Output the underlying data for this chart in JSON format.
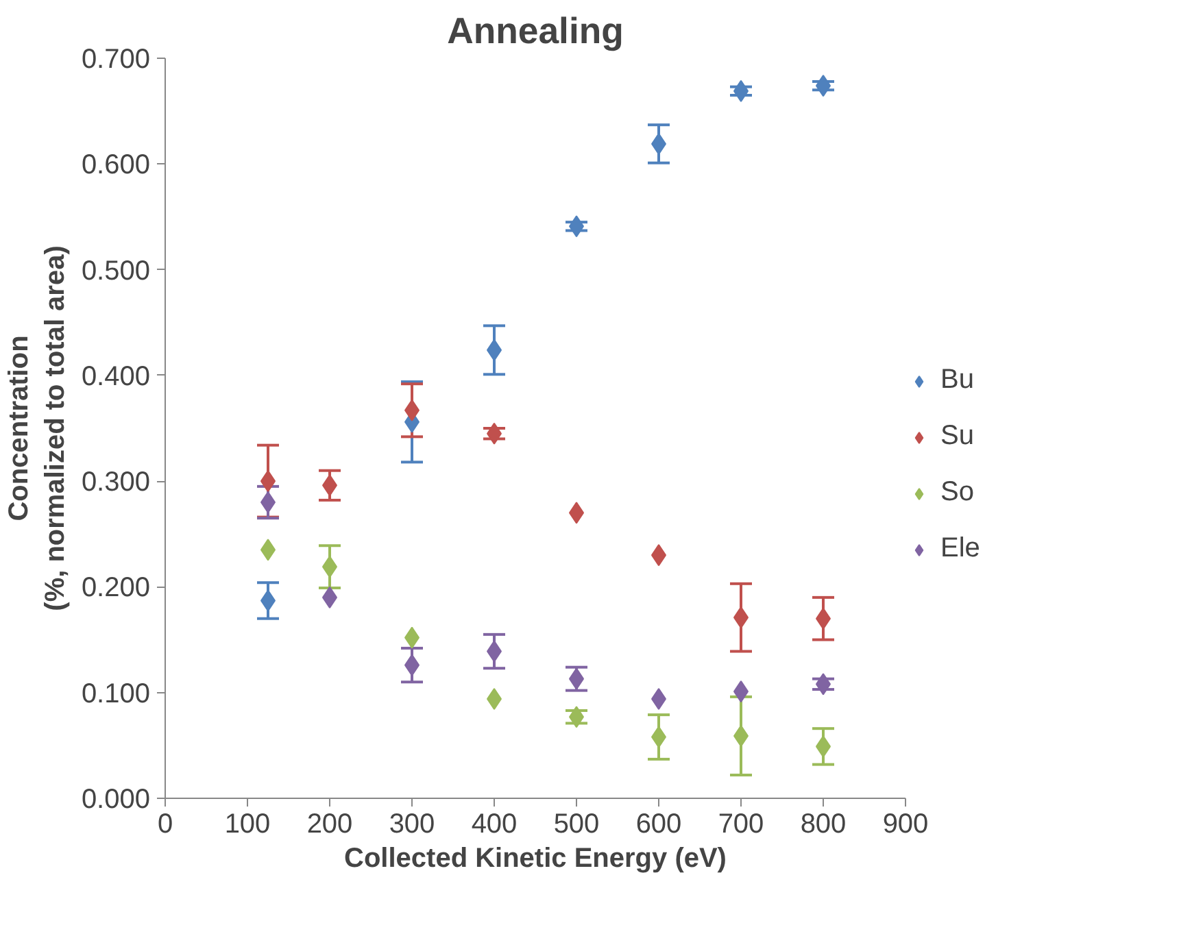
{
  "chart_data": {
    "type": "scatter",
    "title": "Annealing",
    "xlabel": "Collected Kinetic Energy (eV)",
    "ylabel": "Concentration\n(%, normalized to total area)",
    "xlim": [
      0,
      900
    ],
    "xticks": [
      0,
      100,
      200,
      300,
      400,
      500,
      600,
      700,
      800,
      900
    ],
    "ylim": [
      0,
      0.7
    ],
    "yticks": [
      {
        "value": 0,
        "label": "0.000"
      },
      {
        "value": 0.1,
        "label": "0.100"
      },
      {
        "value": 0.2,
        "label": "0.200"
      },
      {
        "value": 0.3,
        "label": "0.300"
      },
      {
        "value": 0.4,
        "label": "0.400"
      },
      {
        "value": 0.5,
        "label": "0.500"
      },
      {
        "value": 0.6,
        "label": "0.600"
      },
      {
        "value": 0.7,
        "label": "0.700"
      }
    ],
    "x": [
      125,
      200,
      300,
      400,
      500,
      600,
      700,
      800
    ],
    "series": [
      {
        "name": "Bu",
        "color": "#4f81bd",
        "x": [
          125,
          300,
          400,
          500,
          600,
          700,
          800
        ],
        "values": [
          0.187,
          0.356,
          0.424,
          0.541,
          0.619,
          0.669,
          0.674
        ],
        "errors": [
          0.017,
          0.038,
          0.023,
          0.004,
          0.018,
          0.004,
          0.004
        ]
      },
      {
        "name": "Su",
        "color": "#c0504d",
        "values": [
          0.3,
          0.296,
          0.367,
          0.345,
          0.27,
          0.23,
          0.171,
          0.17
        ],
        "errors": [
          0.034,
          0.014,
          0.025,
          0.005,
          null,
          null,
          0.032,
          0.02
        ]
      },
      {
        "name": "So",
        "color": "#9bbb59",
        "values": [
          0.235,
          0.219,
          0.152,
          0.094,
          0.077,
          0.058,
          0.059,
          0.049
        ],
        "errors": [
          null,
          0.02,
          null,
          null,
          0.006,
          0.021,
          0.037,
          0.017
        ]
      },
      {
        "name": "Ele",
        "color": "#8064a2",
        "values": [
          0.28,
          0.19,
          0.126,
          0.139,
          0.113,
          0.094,
          0.101,
          0.108
        ],
        "errors": [
          0.015,
          null,
          0.016,
          0.016,
          0.011,
          null,
          null,
          0.005
        ]
      }
    ],
    "marker": "diamond",
    "grid": false,
    "legend": "right"
  }
}
